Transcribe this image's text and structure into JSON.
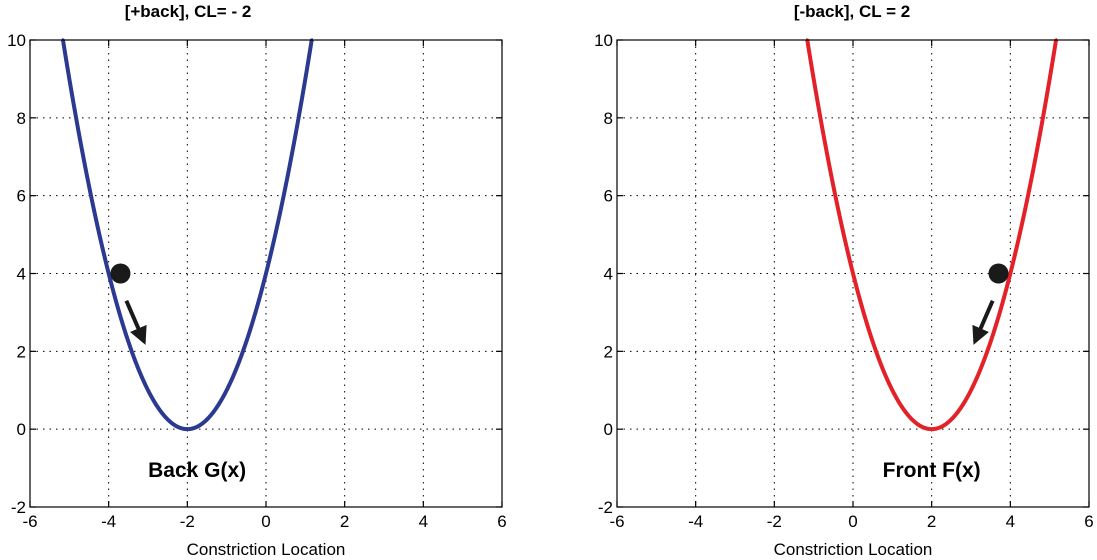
{
  "chart_data": [
    {
      "type": "line",
      "title": "[+back], CL= - 2",
      "xlabel": "Constriction Location",
      "ylabel": "",
      "xlim": [
        -6,
        6
      ],
      "ylim": [
        -2,
        10
      ],
      "xticks": [
        -6,
        -4,
        -2,
        0,
        2,
        4,
        6
      ],
      "yticks": [
        -2,
        0,
        2,
        4,
        6,
        8,
        10
      ],
      "grid": true,
      "series": [
        {
          "name": "Back G(x)",
          "color": "#2b3990",
          "function": "(x+2)^2",
          "x": [
            -5.2,
            -5,
            -4.5,
            -4,
            -3.5,
            -3,
            -2.5,
            -2,
            -1.5,
            -1,
            -0.5,
            0,
            0.5,
            1,
            1.2
          ],
          "y": [
            10.24,
            9,
            6.25,
            4,
            2.25,
            1,
            0.25,
            0,
            0.25,
            1,
            2.25,
            4,
            6.25,
            9,
            10.24
          ]
        }
      ],
      "annotations": [
        {
          "type": "ball",
          "x": -3.7,
          "y": 4.0,
          "color": "#1a1a1a"
        },
        {
          "type": "arrow",
          "x1": -3.55,
          "y1": 3.3,
          "x2": -3.1,
          "y2": 2.25,
          "color": "#1a1a1a"
        },
        {
          "type": "text",
          "text": "Back G(x)",
          "x": -1.75,
          "y": -1.05
        }
      ]
    },
    {
      "type": "line",
      "title": "[-back], CL = 2",
      "xlabel": "Constriction Location",
      "ylabel": "",
      "xlim": [
        -6,
        6
      ],
      "ylim": [
        -2,
        10
      ],
      "xticks": [
        -6,
        -4,
        -2,
        0,
        2,
        4,
        6
      ],
      "yticks": [
        -2,
        0,
        2,
        4,
        6,
        8,
        10
      ],
      "grid": true,
      "series": [
        {
          "name": "Front F(x)",
          "color": "#e32128",
          "function": "(x-2)^2",
          "x": [
            -1.2,
            -1,
            -0.5,
            0,
            0.5,
            1,
            1.5,
            2,
            2.5,
            3,
            3.5,
            4,
            4.5,
            5,
            5.2
          ],
          "y": [
            10.24,
            9,
            6.25,
            4,
            2.25,
            1,
            0.25,
            0,
            0.25,
            1,
            2.25,
            4,
            6.25,
            9,
            10.24
          ]
        }
      ],
      "annotations": [
        {
          "type": "ball",
          "x": 3.7,
          "y": 4.0,
          "color": "#1a1a1a"
        },
        {
          "type": "arrow",
          "x1": 3.55,
          "y1": 3.3,
          "x2": 3.1,
          "y2": 2.25,
          "color": "#1a1a1a"
        },
        {
          "type": "text",
          "text": "Front F(x)",
          "x": 2.0,
          "y": -1.05
        }
      ]
    }
  ]
}
